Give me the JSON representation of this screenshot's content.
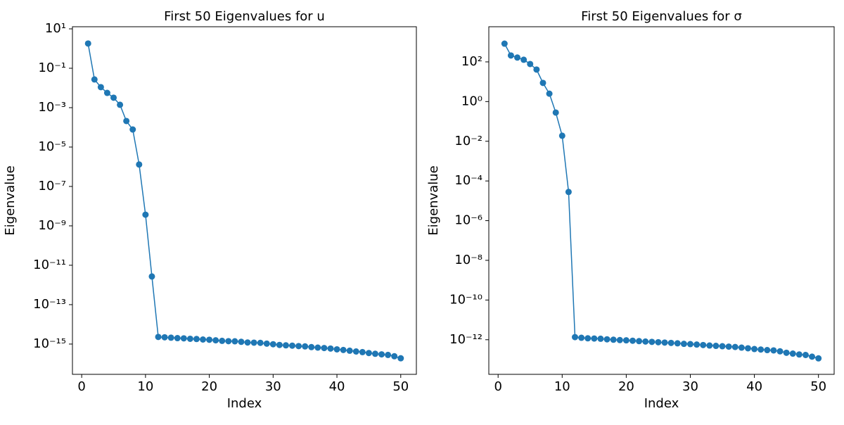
{
  "chart_data": [
    {
      "type": "line",
      "title": "First 50 Eigenvalues for u",
      "x_label": "Index",
      "y_label": "Eigenvalue",
      "yscale": "log",
      "x": [
        1,
        2,
        3,
        4,
        5,
        6,
        7,
        8,
        9,
        10,
        11,
        12,
        13,
        14,
        15,
        16,
        17,
        18,
        19,
        20,
        21,
        22,
        23,
        24,
        25,
        26,
        27,
        28,
        29,
        30,
        31,
        32,
        33,
        34,
        35,
        36,
        37,
        38,
        39,
        40,
        41,
        42,
        43,
        44,
        45,
        46,
        47,
        48,
        49,
        50
      ],
      "series": [
        {
          "color": "#1f77b4",
          "values": [
            1.8,
            0.027,
            0.011,
            0.0056,
            0.0032,
            0.0014,
            0.00021,
            7.8e-05,
            1.3e-06,
            3.7e-09,
            2.7e-12,
            2.3e-15,
            2.2e-15,
            2.1e-15,
            2e-15,
            1.95e-15,
            1.85e-15,
            1.8e-15,
            1.7e-15,
            1.65e-15,
            1.55e-15,
            1.45e-15,
            1.4e-15,
            1.38e-15,
            1.3e-15,
            1.2e-15,
            1.18e-15,
            1.15e-15,
            1.05e-15,
            9.8e-16,
            9e-16,
            8.6e-16,
            8.3e-16,
            7.9e-16,
            7.6e-16,
            7e-16,
            6.6e-16,
            6.3e-16,
            5.9e-16,
            5.4e-16,
            5e-16,
            4.6e-16,
            4.2e-16,
            3.9e-16,
            3.5e-16,
            3.2e-16,
            3e-16,
            2.8e-16,
            2.4e-16,
            1.9e-16
          ]
        }
      ],
      "xlim": [
        -1.45,
        52.45
      ],
      "xticks": [
        0,
        10,
        20,
        30,
        40,
        50
      ],
      "ylim": [
        2.9e-17,
        12.8
      ],
      "yticks": [
        {
          "value": 10,
          "label": "10¹"
        },
        {
          "value": 0.1,
          "label": "10⁻¹"
        },
        {
          "value": 0.001,
          "label": "10⁻³"
        },
        {
          "value": 1e-05,
          "label": "10⁻⁵"
        },
        {
          "value": 1e-07,
          "label": "10⁻⁷"
        },
        {
          "value": 1e-09,
          "label": "10⁻⁹"
        },
        {
          "value": 1e-11,
          "label": "10⁻¹¹"
        },
        {
          "value": 1e-13,
          "label": "10⁻¹³"
        },
        {
          "value": 1e-15,
          "label": "10⁻¹⁵"
        }
      ]
    },
    {
      "type": "line",
      "title": "First 50 Eigenvalues for σ",
      "x_label": "Index",
      "y_label": "Eigenvalue",
      "yscale": "log",
      "x": [
        1,
        2,
        3,
        4,
        5,
        6,
        7,
        8,
        9,
        10,
        11,
        12,
        13,
        14,
        15,
        16,
        17,
        18,
        19,
        20,
        21,
        22,
        23,
        24,
        25,
        26,
        27,
        28,
        29,
        30,
        31,
        32,
        33,
        34,
        35,
        36,
        37,
        38,
        39,
        40,
        41,
        42,
        43,
        44,
        45,
        46,
        47,
        48,
        49,
        50
      ],
      "series": [
        {
          "color": "#1f77b4",
          "values": [
            830,
            210,
            165,
            128,
            78,
            41,
            8.7,
            2.5,
            0.28,
            0.019,
            2.8e-05,
            1.35e-12,
            1.25e-12,
            1.18e-12,
            1.15e-12,
            1.12e-12,
            1.05e-12,
            1e-12,
            9.6e-13,
            9.3e-13,
            8.9e-13,
            8.5e-13,
            8.1e-13,
            7.8e-13,
            7.5e-13,
            7.2e-13,
            6.9e-13,
            6.6e-13,
            6.2e-13,
            6e-13,
            5.7e-13,
            5.4e-13,
            5.1e-13,
            4.9e-13,
            4.7e-13,
            4.5e-13,
            4.3e-13,
            4e-13,
            3.7e-13,
            3.4e-13,
            3.2e-13,
            3e-13,
            2.9e-13,
            2.6e-13,
            2.2e-13,
            2e-13,
            1.8e-13,
            1.7e-13,
            1.4e-13,
            1.15e-13
          ]
        }
      ],
      "xlim": [
        -1.45,
        52.45
      ],
      "xticks": [
        0,
        10,
        20,
        30,
        40,
        50
      ],
      "ylim": [
        1.8e-14,
        5900
      ],
      "yticks": [
        {
          "value": 100,
          "label": "10²"
        },
        {
          "value": 1,
          "label": "10⁰"
        },
        {
          "value": 0.01,
          "label": "10⁻²"
        },
        {
          "value": 0.0001,
          "label": "10⁻⁴"
        },
        {
          "value": 1e-06,
          "label": "10⁻⁶"
        },
        {
          "value": 1e-08,
          "label": "10⁻⁸"
        },
        {
          "value": 1e-10,
          "label": "10⁻¹⁰"
        },
        {
          "value": 1e-12,
          "label": "10⁻¹²"
        }
      ]
    }
  ]
}
